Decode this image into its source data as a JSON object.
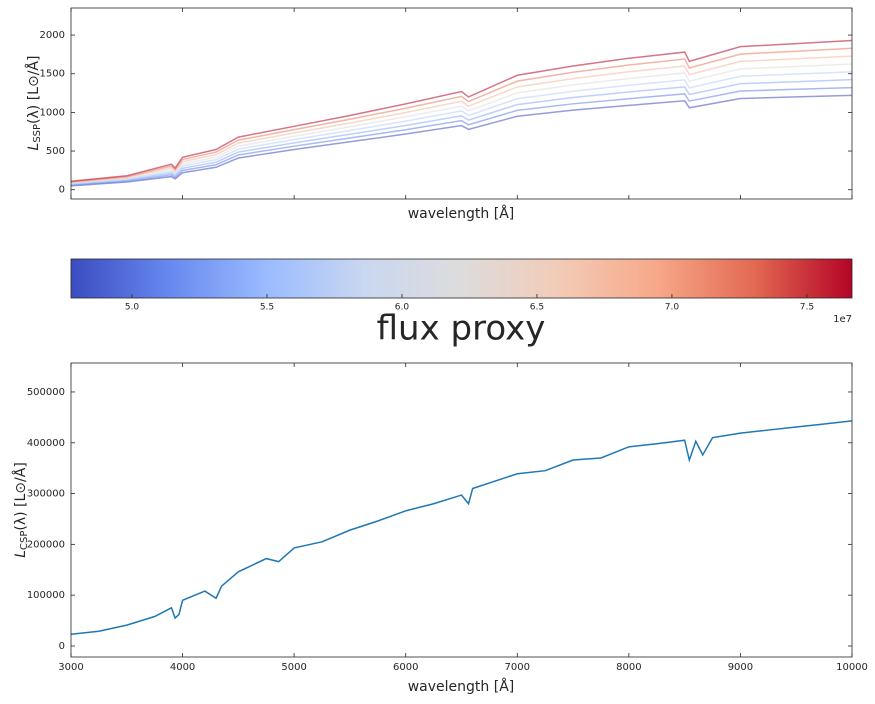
{
  "chart_data": [
    {
      "type": "line",
      "xlabel": "wavelength [Å]",
      "ylabel": [
        "L",
        "SSP",
        "(λ) [L⊙/Å]"
      ],
      "x": [
        3000,
        3500,
        3900,
        3933,
        4000,
        4300,
        4500,
        5000,
        5500,
        6000,
        6500,
        6563,
        7000,
        7500,
        8000,
        8500,
        8542,
        9000,
        9500,
        10000
      ],
      "series": [
        {
          "color": "#3b4cc0",
          "values": [
            50,
            100,
            170,
            140,
            220,
            290,
            410,
            520,
            620,
            720,
            830,
            780,
            950,
            1030,
            1090,
            1150,
            1060,
            1180,
            1200,
            1220
          ]
        },
        {
          "color": "#5f7fe8",
          "values": [
            59,
            111,
            193,
            160,
            249,
            323,
            449,
            563,
            669,
            776,
            893,
            840,
            1026,
            1111,
            1177,
            1240,
            1146,
            1276,
            1299,
            1321
          ]
        },
        {
          "color": "#85a8fc",
          "values": [
            67,
            123,
            216,
            180,
            277,
            356,
            487,
            606,
            717,
            831,
            956,
            900,
            1101,
            1193,
            1264,
            1330,
            1231,
            1371,
            1397,
            1423
          ]
        },
        {
          "color": "#b4cdfa",
          "values": [
            76,
            134,
            239,
            200,
            306,
            389,
            526,
            649,
            766,
            887,
            1019,
            960,
            1177,
            1274,
            1351,
            1420,
            1317,
            1467,
            1496,
            1524
          ]
        },
        {
          "color": "#dddcdc",
          "values": [
            84,
            146,
            261,
            220,
            334,
            421,
            564,
            691,
            814,
            943,
            1081,
            1020,
            1253,
            1356,
            1439,
            1510,
            1403,
            1563,
            1594,
            1626
          ]
        },
        {
          "color": "#f3b89b",
          "values": [
            93,
            157,
            284,
            240,
            363,
            454,
            603,
            734,
            863,
            999,
            1144,
            1080,
            1329,
            1437,
            1526,
            1600,
            1489,
            1659,
            1693,
            1727
          ]
        },
        {
          "color": "#e7785d",
          "values": [
            101,
            169,
            307,
            260,
            391,
            487,
            641,
            777,
            911,
            1054,
            1207,
            1140,
            1404,
            1519,
            1613,
            1690,
            1574,
            1754,
            1791,
            1829
          ]
        },
        {
          "color": "#b40426",
          "values": [
            110,
            180,
            330,
            280,
            420,
            520,
            680,
            820,
            960,
            1110,
            1270,
            1200,
            1480,
            1600,
            1700,
            1780,
            1660,
            1850,
            1890,
            1930
          ]
        }
      ],
      "opacity": 0.55,
      "xlim": [
        3000,
        10000
      ],
      "xticks": [
        3000,
        4000,
        5000,
        6000,
        7000,
        8000,
        9000,
        10000
      ],
      "ylim": [
        -120,
        2350
      ],
      "yticks": [
        0,
        500,
        1000,
        1500,
        2000
      ]
    },
    {
      "type": "colorbar",
      "label": "flux proxy",
      "offset_text": "1e7",
      "colors": [
        "#3b4cc0",
        "#6788ee",
        "#9abbff",
        "#c9d7f0",
        "#dddcdc",
        "#f2cbb7",
        "#f7a889",
        "#e26952",
        "#b40426"
      ],
      "clim": [
        4.774,
        7.667
      ],
      "ticks": [
        {
          "value": 5,
          "label": "5.0"
        },
        {
          "value": 5.5,
          "label": "5.5"
        },
        {
          "value": 6,
          "label": "6.0"
        },
        {
          "value": 6.5,
          "label": "6.5"
        },
        {
          "value": 7,
          "label": "7.0"
        },
        {
          "value": 7.5,
          "label": "7.5"
        }
      ]
    },
    {
      "type": "line",
      "xlabel": "wavelength [Å]",
      "ylabel": [
        "L",
        "CSP",
        "(λ) [L⊙/Å]"
      ],
      "x": [
        3000,
        3250,
        3500,
        3750,
        3900,
        3933,
        3968,
        4000,
        4200,
        4300,
        4350,
        4500,
        4750,
        4861,
        5000,
        5250,
        5500,
        5750,
        6000,
        6250,
        6500,
        6563,
        6600,
        7000,
        7250,
        7500,
        7750,
        8000,
        8250,
        8500,
        8542,
        8600,
        8662,
        8750,
        9000,
        9250,
        9500,
        9750,
        10000
      ],
      "series": [
        {
          "color": "#1f77b4",
          "values": [
            23000,
            29000,
            41000,
            58000,
            75000,
            55000,
            62000,
            90000,
            108000,
            94000,
            118000,
            146000,
            172000,
            166000,
            193000,
            205000,
            228000,
            246000,
            266000,
            280000,
            297000,
            280000,
            310000,
            339000,
            345000,
            366000,
            370000,
            392000,
            398000,
            405000,
            366000,
            403000,
            376000,
            410000,
            419000,
            425000,
            431000,
            437000,
            443000
          ]
        }
      ],
      "opacity": 1,
      "xlim": [
        3000,
        10000
      ],
      "xticks": [
        3000,
        4000,
        5000,
        6000,
        7000,
        8000,
        9000,
        10000
      ],
      "ylim": [
        -21700,
        557000
      ],
      "yticks": [
        0,
        100000,
        200000,
        300000,
        400000,
        500000
      ]
    }
  ]
}
